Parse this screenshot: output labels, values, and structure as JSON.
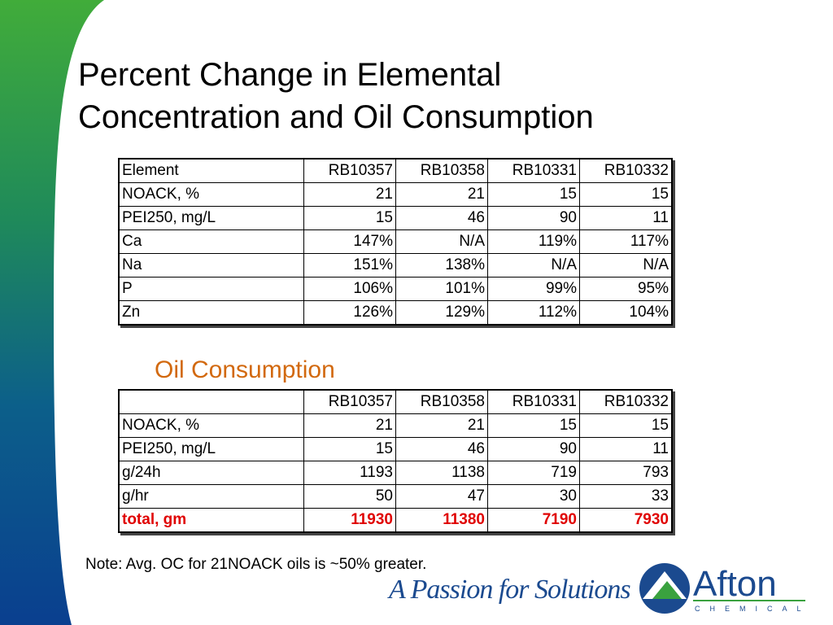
{
  "title_line1": "Percent Change in Elemental",
  "title_line2": "Concentration and Oil Consumption",
  "elements_table": {
    "header": [
      "Element",
      "RB10357",
      "RB10358",
      "RB10331",
      "RB10332"
    ],
    "rows": [
      [
        "NOACK, %",
        "21",
        "21",
        "15",
        "15"
      ],
      [
        "PEI250, mg/L",
        "15",
        "46",
        "90",
        "11"
      ],
      [
        "Ca",
        "147%",
        "N/A",
        "119%",
        "117%"
      ],
      [
        "Na",
        "151%",
        "138%",
        "N/A",
        "N/A"
      ],
      [
        "P",
        "106%",
        "101%",
        "99%",
        "95%"
      ],
      [
        "Zn",
        "126%",
        "129%",
        "112%",
        "104%"
      ]
    ]
  },
  "oil_subtitle": "Oil Consumption",
  "oil_table": {
    "header": [
      "",
      "RB10357",
      "RB10358",
      "RB10331",
      "RB10332"
    ],
    "rows": [
      [
        "NOACK, %",
        "21",
        "21",
        "15",
        "15"
      ],
      [
        "PEI250, mg/L",
        "15",
        "46",
        "90",
        "11"
      ],
      [
        "g/24h",
        "1193",
        "1138",
        "719",
        "793"
      ],
      [
        "g/hr",
        "50",
        "47",
        "30",
        "33"
      ]
    ],
    "total_row": [
      "total, gm",
      "11930",
      "11380",
      "7190",
      "7930"
    ]
  },
  "note": "Note:  Avg. OC for 21NOACK oils is ~50% greater.",
  "tagline": "A Passion for Solutions",
  "logo": {
    "name": "Afton",
    "sub": "CHEMICAL"
  },
  "colors": {
    "band_green": "#3aa23f",
    "band_blue": "#0a3f8f",
    "subtitle_orange": "#d2690f",
    "total_red": "#e00000",
    "brand_blue": "#1b4a8f"
  }
}
